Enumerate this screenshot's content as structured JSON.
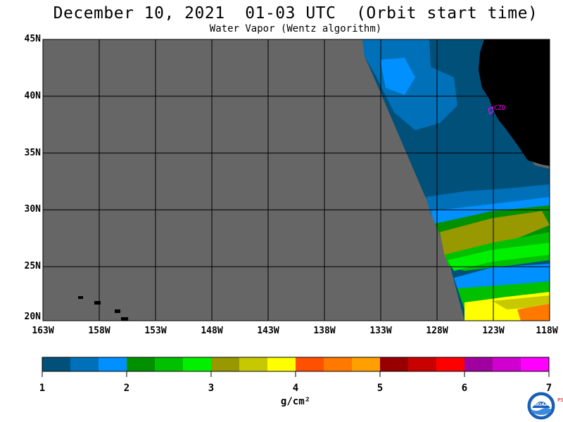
{
  "title": "December 10, 2021  01-03 UTC  (Orbit start time)",
  "subtitle": "Water Vapor (Wentz algorithm)",
  "map": {
    "lat_labels": [
      "45N",
      "40N",
      "35N",
      "30N",
      "25N",
      "20N"
    ],
    "lon_labels": [
      "163W",
      "158W",
      "153W",
      "148W",
      "143W",
      "138W",
      "133W",
      "128W",
      "123W",
      "118W"
    ],
    "station_label": "CZD",
    "colors": {
      "nodata": "#666666",
      "land": "#000000",
      "grid": "#000000",
      "station": "#ff00ff"
    }
  },
  "colorbar": {
    "colors": [
      "#00507a",
      "#0070b8",
      "#0090ff",
      "#009000",
      "#00c000",
      "#00f000",
      "#989800",
      "#c8c800",
      "#ffff00",
      "#ff5000",
      "#ff7800",
      "#ffa000",
      "#980000",
      "#c80000",
      "#ff0000",
      "#a000a0",
      "#d000d0",
      "#ff00ff"
    ],
    "ticks": [
      "1",
      "2",
      "3",
      "4",
      "5",
      "6",
      "7"
    ],
    "unit": "g/cm²"
  },
  "logo": {
    "text": "NOAA",
    "side_text": "PSL"
  }
}
